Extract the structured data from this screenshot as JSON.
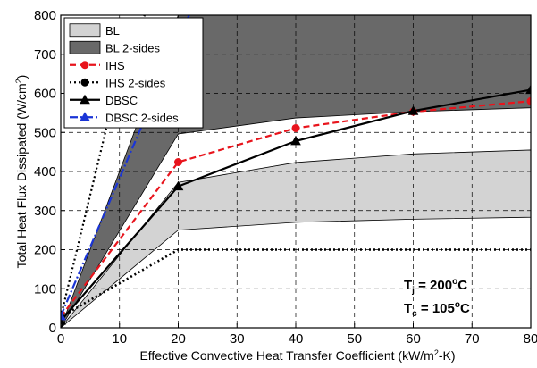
{
  "chart_data": {
    "type": "line",
    "title": "",
    "xlabel": "Effective Convective Heat Transfer Coefficient (kW/m",
    "xlabel_sup": "2",
    "xlabel_end": "-K)",
    "ylabel": "Total Heat Flux Dissipated (W/cm",
    "ylabel_sup": "2",
    "ylabel_end": ")",
    "xlim": [
      0,
      80
    ],
    "ylim": [
      0,
      800
    ],
    "x_ticks": [
      0,
      10,
      20,
      30,
      40,
      50,
      60,
      70,
      80
    ],
    "y_ticks": [
      0,
      100,
      200,
      300,
      400,
      500,
      600,
      700,
      800
    ],
    "grid": true,
    "grid_style": "dashed",
    "legend_position": "top-left",
    "bands": [
      {
        "name": "BL",
        "color": "#d3d3d3",
        "x": [
          0,
          20,
          40,
          60,
          80
        ],
        "lower": [
          0,
          250,
          270,
          278,
          283
        ],
        "upper": [
          0,
          372,
          423,
          445,
          455
        ]
      },
      {
        "name": "BL 2-sides",
        "color": "#696969",
        "x": [
          0,
          20,
          40,
          60,
          80
        ],
        "lower": [
          0,
          496,
          537,
          553,
          563
        ],
        "upper": [
          0,
          800,
          800,
          800,
          800
        ]
      }
    ],
    "series": [
      {
        "name": "IHS",
        "color": "#e8141c",
        "style": "dashed",
        "marker": "circle",
        "x": [
          0,
          20,
          40,
          60,
          80
        ],
        "y": [
          28,
          424,
          511,
          553,
          580
        ]
      },
      {
        "name": "IHS 2-sides",
        "color": "#000000",
        "style": "dotted",
        "marker": "circle",
        "x": [
          0,
          20,
          40,
          60,
          80,
          10,
          20
        ],
        "y": [
          28,
          200,
          200,
          200,
          200,
          650,
          1000
        ],
        "note_marker_count": 1
      },
      {
        "name": "DBSC",
        "color": "#000000",
        "style": "solid",
        "marker": "triangle",
        "x": [
          0,
          20,
          40,
          60,
          80
        ],
        "y": [
          18,
          362,
          478,
          555,
          609
        ]
      },
      {
        "name": "DBSC 2-sides",
        "color": "#1a35d6",
        "style": "dashdot",
        "marker": "triangle",
        "x": [
          0,
          20,
          40
        ],
        "y": [
          30,
          735,
          1440
        ]
      }
    ],
    "annotations": [
      {
        "main": "T",
        "sub": "j",
        "value": " = 200",
        "sup": "o",
        "unit": "C"
      },
      {
        "main": "T",
        "sub": "c",
        "value": " =  105",
        "sup": "o",
        "unit": "C"
      }
    ]
  }
}
